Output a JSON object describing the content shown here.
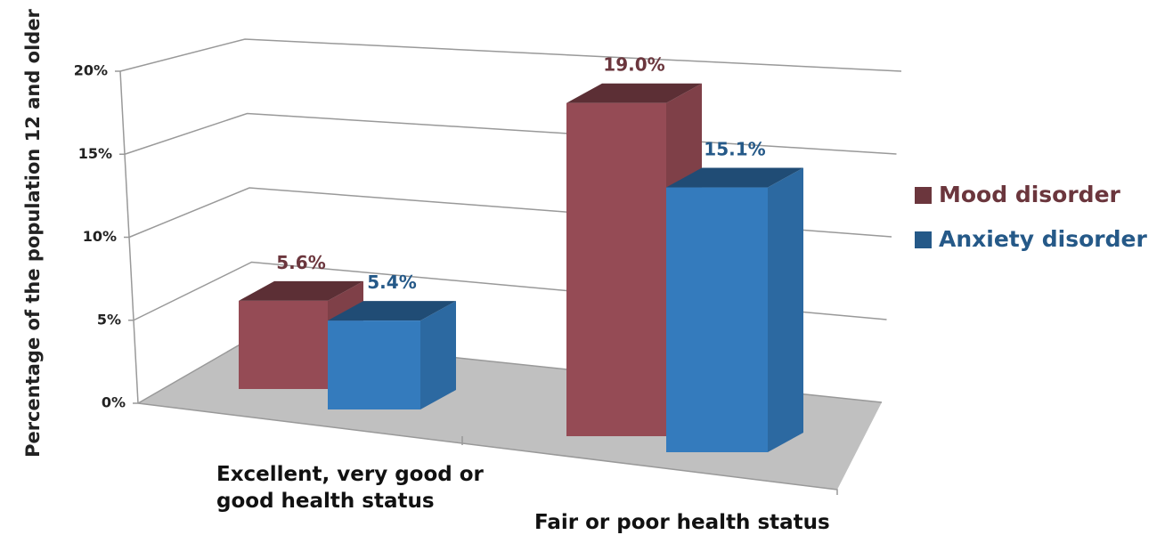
{
  "chart_data": {
    "type": "bar3d",
    "y_label": "Percentage of the population 12 and older",
    "categories": [
      "Excellent, very good or good health status",
      "Fair or poor health status"
    ],
    "series": [
      {
        "name": "Mood disorder",
        "color": "#954b55",
        "values": [
          5.6,
          19.0
        ],
        "value_labels": [
          "5.6%",
          "19.0%"
        ]
      },
      {
        "name": "Anxiety disorder",
        "color": "#347bbd",
        "values": [
          5.4,
          15.1
        ],
        "value_labels": [
          "5.4%",
          "15.1%"
        ]
      }
    ],
    "ylim": [
      0,
      20
    ],
    "yticks": [
      {
        "value": 0,
        "label": "0%"
      },
      {
        "value": 5,
        "label": "5%"
      },
      {
        "value": 10,
        "label": "10%"
      },
      {
        "value": 15,
        "label": "15%"
      },
      {
        "value": 20,
        "label": "20%"
      }
    ],
    "grid": true,
    "legend": "right"
  }
}
